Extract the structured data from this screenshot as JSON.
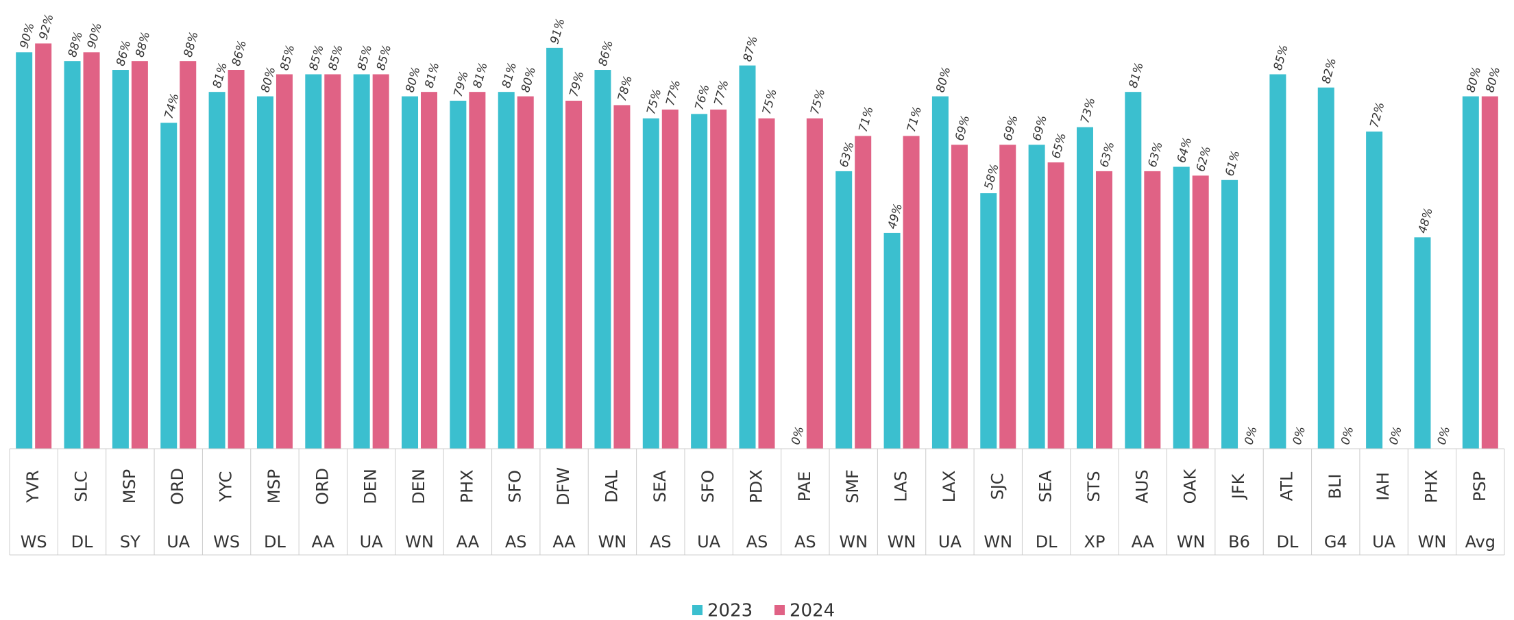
{
  "chart_data": {
    "type": "bar",
    "categories": [
      "YVR",
      "SLC",
      "MSP",
      "ORD",
      "YYC",
      "MSP",
      "ORD",
      "DEN",
      "DEN",
      "PHX",
      "SFO",
      "DFW",
      "DAL",
      "SEA",
      "SFO",
      "PDX",
      "PAE",
      "SMF",
      "LAS",
      "LAX",
      "SJC",
      "SEA",
      "STS",
      "AUS",
      "OAK",
      "JFK",
      "ATL",
      "BLI",
      "IAH",
      "PHX",
      "PSP"
    ],
    "airlines": [
      "WS",
      "DL",
      "SY",
      "UA",
      "WS",
      "DL",
      "AA",
      "UA",
      "WN",
      "AA",
      "AS",
      "AA",
      "WN",
      "AS",
      "UA",
      "AS",
      "AS",
      "WN",
      "WN",
      "UA",
      "WN",
      "DL",
      "XP",
      "AA",
      "WN",
      "B6",
      "DL",
      "G4",
      "UA",
      "WN",
      "Avg"
    ],
    "series": [
      {
        "name": "2023",
        "color": "#3bbfcf",
        "values": [
          90,
          88,
          86,
          74,
          81,
          80,
          85,
          85,
          80,
          79,
          81,
          91,
          86,
          75,
          76,
          87,
          0,
          63,
          49,
          80,
          58,
          69,
          73,
          81,
          64,
          61,
          85,
          82,
          72,
          48,
          80
        ],
        "value_labels": [
          "90%",
          "88%",
          "86%",
          "74%",
          "81%",
          "80%",
          "85%",
          "85%",
          "80%",
          "79%",
          "81%",
          "91%",
          "86%",
          "75%",
          "76%",
          "87%",
          "0%",
          "63%",
          "49%",
          "80%",
          "58%",
          "69%",
          "73%",
          "81%",
          "64%",
          "61%",
          "85%",
          "82%",
          "72%",
          "48%",
          "80%"
        ]
      },
      {
        "name": "2024",
        "color": "#e06285",
        "values": [
          92,
          90,
          88,
          88,
          86,
          85,
          85,
          85,
          81,
          81,
          80,
          79,
          78,
          77,
          77,
          75,
          75,
          71,
          71,
          69,
          69,
          65,
          63,
          63,
          62,
          0,
          0,
          0,
          0,
          0,
          80
        ],
        "value_labels": [
          "92%",
          "90%",
          "88%",
          "88%",
          "86%",
          "85%",
          "85%",
          "85%",
          "81%",
          "81%",
          "80%",
          "79%",
          "78%",
          "77%",
          "77%",
          "75%",
          "75%",
          "71%",
          "71%",
          "69%",
          "69%",
          "65%",
          "63%",
          "63%",
          "62%",
          "0%",
          "0%",
          "0%",
          "0%",
          "0%",
          "80%"
        ]
      }
    ]
  }
}
